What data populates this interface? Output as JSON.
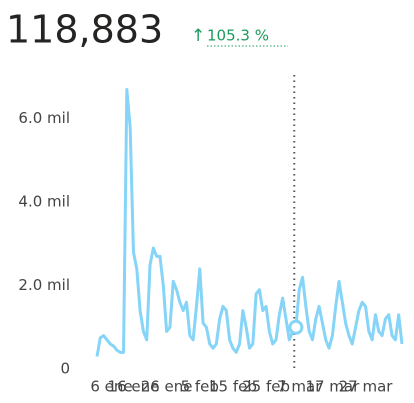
{
  "chart_data": {
    "type": "line",
    "total": "118,883",
    "change_arrow": "↑",
    "change": "105.3 %",
    "x": [
      5,
      6,
      7,
      8,
      9,
      10,
      11,
      12,
      13,
      14,
      15,
      16,
      17,
      18,
      19,
      20,
      21,
      22,
      23,
      24,
      25,
      26,
      27,
      28,
      29,
      30,
      31,
      32,
      33,
      34,
      35,
      36,
      37,
      38,
      39,
      40,
      41,
      42,
      43,
      44,
      45,
      46,
      47,
      48,
      49,
      50,
      51,
      52,
      53,
      54,
      55,
      56,
      57,
      58,
      59,
      60,
      61,
      62,
      63,
      64,
      65,
      66,
      67,
      68,
      69,
      70,
      71,
      72,
      73,
      74,
      75,
      76,
      77,
      78,
      79,
      80,
      81,
      82,
      83,
      84,
      85,
      86,
      87,
      88,
      89,
      90,
      91,
      92,
      93,
      94,
      95,
      96,
      97
    ],
    "series": [
      {
        "color": "#86d4f7",
        "values": [
          300,
          750,
          800,
          700,
          600,
          550,
          450,
          400,
          400,
          6700,
          5800,
          2800,
          2400,
          1400,
          900,
          700,
          2500,
          2900,
          2700,
          2700,
          2000,
          900,
          1000,
          2100,
          1900,
          1600,
          1400,
          1600,
          800,
          700,
          1500,
          2400,
          1100,
          1000,
          600,
          500,
          600,
          1200,
          1500,
          1400,
          700,
          500,
          400,
          600,
          1400,
          1000,
          500,
          600,
          1800,
          1900,
          1400,
          1500,
          900,
          600,
          700,
          1300,
          1700,
          1200,
          700,
          900,
          1000,
          1900,
          2200,
          1500,
          900,
          700,
          1200,
          1500,
          1100,
          700,
          500,
          800,
          1500,
          2100,
          1600,
          1100,
          800,
          600,
          1000,
          1400,
          1600,
          1500,
          900,
          700,
          1300,
          900,
          800,
          1200,
          1300,
          800,
          700,
          1300,
          600
        ]
      }
    ],
    "xlim": [
      5,
      97
    ],
    "xticks": [
      {
        "value": 6,
        "label": "6 ene"
      },
      {
        "value": 16,
        "label": "16 ene"
      },
      {
        "value": 26,
        "label": "26 ene"
      },
      {
        "value": 36,
        "label": "5 feb"
      },
      {
        "value": 46,
        "label": "15 feb"
      },
      {
        "value": 56,
        "label": "25 feb"
      },
      {
        "value": 66,
        "label": "7 mar"
      },
      {
        "value": 76,
        "label": "17 mar"
      },
      {
        "value": 86,
        "label": "27 mar"
      }
    ],
    "ylim": [
      0,
      7000
    ],
    "yticks": [
      0,
      {
        "value": 2000,
        "label": "2.0 mil"
      },
      {
        "value": 4000,
        "label": "4.0 mil"
      },
      {
        "value": 6000,
        "label": "6.0 mil"
      }
    ],
    "reference_x": 64.5,
    "highlight_index": 60,
    "grid": false
  }
}
